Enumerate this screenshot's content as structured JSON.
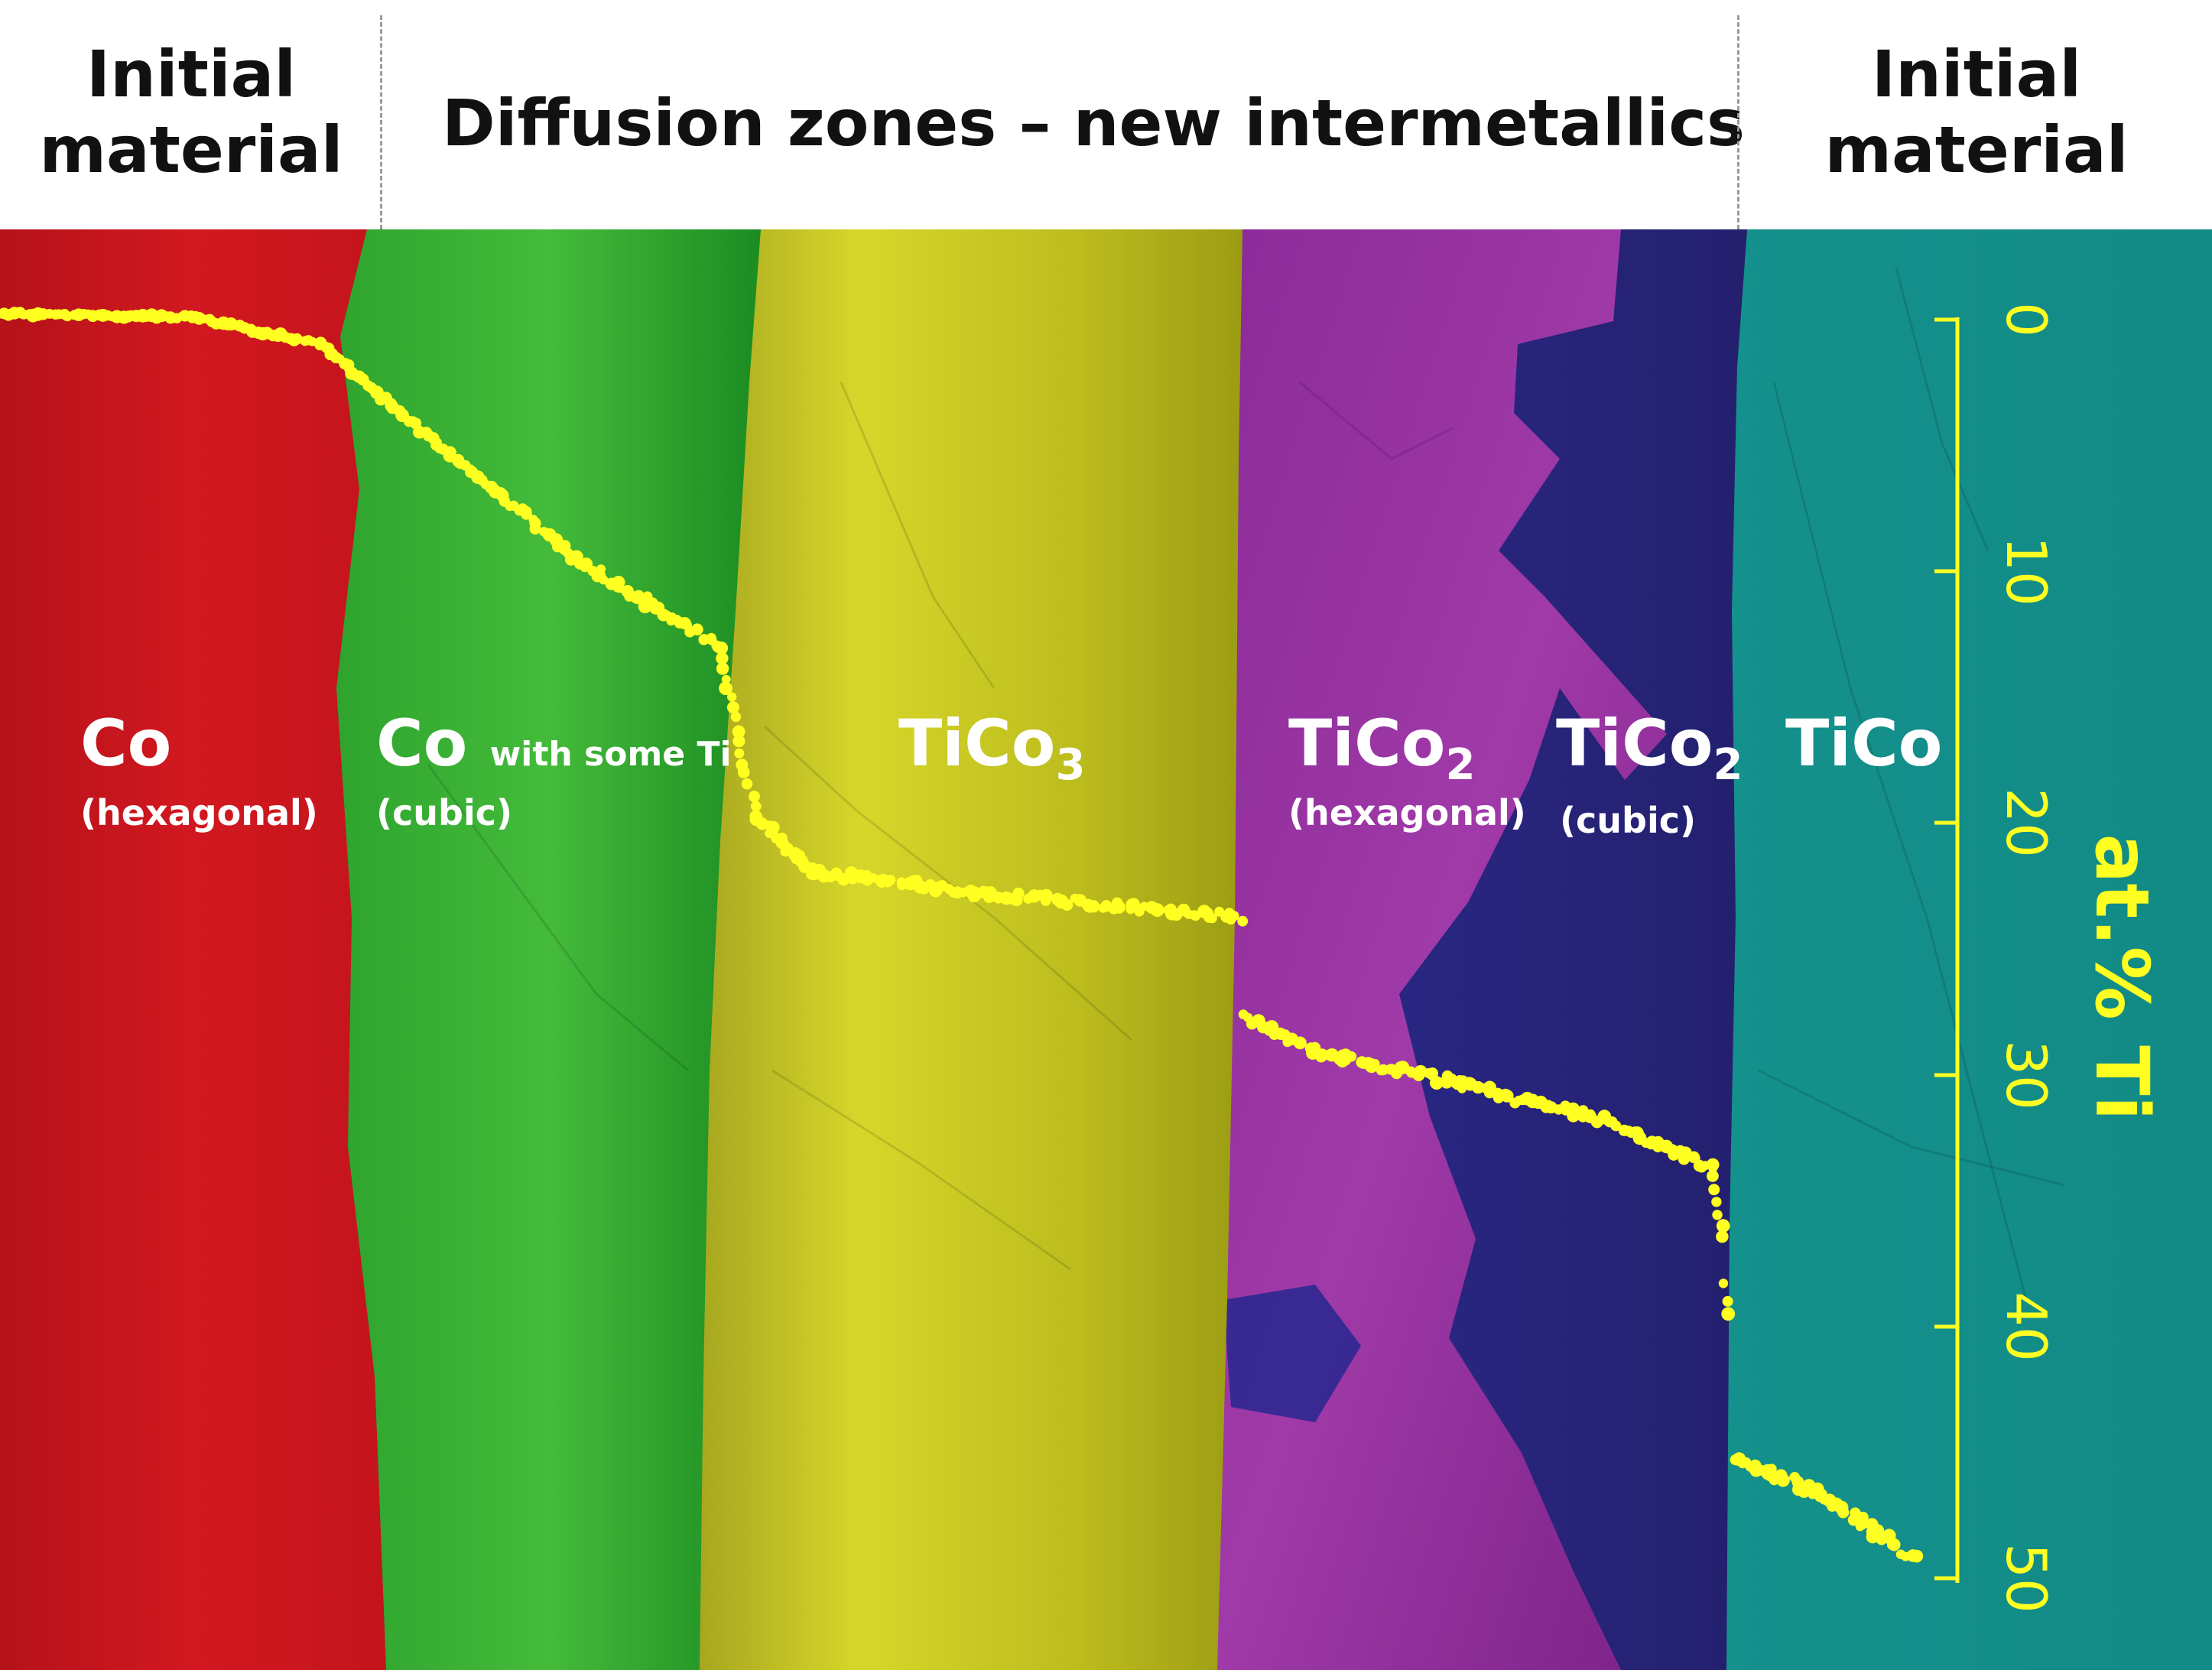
{
  "header": {
    "left_line1": "Initial",
    "left_line2": "material",
    "middle": "Diffusion zones – new intermetallics",
    "right_line1": "Initial",
    "right_line2": "material"
  },
  "phases": [
    {
      "name": "Co",
      "note": "(hexagonal)",
      "color": "#c8141c"
    },
    {
      "name": "Co",
      "extra": "with some Ti",
      "note": "(cubic)",
      "color": "#32b432"
    },
    {
      "name": "TiCo",
      "subscript": "3",
      "color": "#c8c81e"
    },
    {
      "name": "TiCo",
      "subscript": "2",
      "note": "(hexagonal)",
      "color": "#8c2896"
    },
    {
      "name": "TiCo",
      "subscript": "2",
      "note": "(cubic)",
      "color": "#2d2896"
    },
    {
      "name": "TiCo",
      "color": "#14918c"
    }
  ],
  "axis": {
    "title": "at.% Ti",
    "ticks": [
      "0",
      "10",
      "20",
      "30",
      "40",
      "50"
    ],
    "color": "#ffff22"
  },
  "colors": {
    "profile": "#ffff22"
  }
}
